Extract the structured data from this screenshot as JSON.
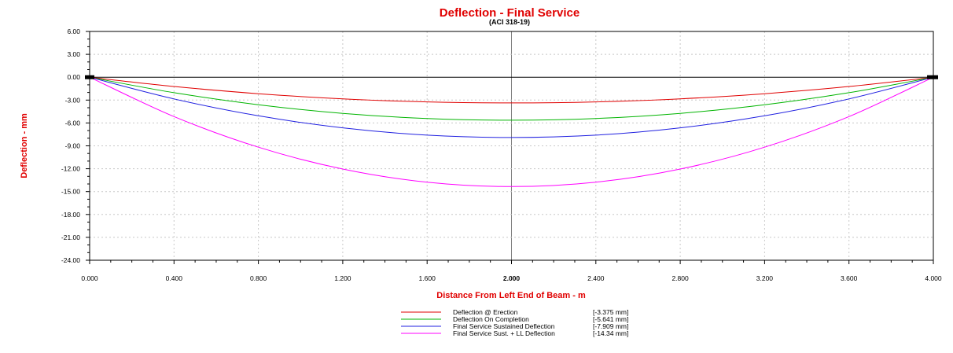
{
  "chart_data": {
    "type": "line",
    "title": "Deflection - Final Service",
    "subtitle": "(ACI 318-19)",
    "xlabel": "Distance From Left End of Beam - m",
    "ylabel": "Deflection - mm",
    "title_color": "#e00000",
    "xlim": [
      0,
      4
    ],
    "ylim": [
      -24,
      6
    ],
    "x_ticks": [
      0,
      0.4,
      0.8,
      1.2,
      1.6,
      2.0,
      2.4,
      2.8,
      3.2,
      3.6,
      4.0
    ],
    "x_tick_labels": [
      "0.000",
      "0.400",
      "0.800",
      "1.200",
      "1.600",
      "2.000",
      "2.400",
      "2.800",
      "3.200",
      "3.600",
      "4.000"
    ],
    "y_ticks": [
      6,
      3,
      0,
      -3,
      -6,
      -9,
      -12,
      -15,
      -18,
      -21,
      -24
    ],
    "y_tick_labels": [
      "6.00",
      "3.00",
      "0.00",
      "-3.00",
      "-6.00",
      "-9.00",
      "-12.00",
      "-15.00",
      "-18.00",
      "-21.00",
      "-24.00"
    ],
    "highlight_x": 2.0,
    "grid": true,
    "legend_position": "bottom-center",
    "series": [
      {
        "name": "Deflection @ Erection",
        "value_label": "[-3.375  mm]",
        "color": "#e00000",
        "x": [
          0,
          0.4,
          0.8,
          1.2,
          1.6,
          2.0,
          2.4,
          2.8,
          3.2,
          3.6,
          4.0
        ],
        "values": [
          0,
          -1.215,
          -2.16,
          -2.835,
          -3.24,
          -3.375,
          -3.24,
          -2.835,
          -2.16,
          -1.215,
          0
        ]
      },
      {
        "name": "Deflection On Completion",
        "value_label": "[-5.641  mm]",
        "color": "#00b400",
        "x": [
          0,
          0.4,
          0.8,
          1.2,
          1.6,
          2.0,
          2.4,
          2.8,
          3.2,
          3.6,
          4.0
        ],
        "values": [
          0,
          -2.031,
          -3.61,
          -4.738,
          -5.415,
          -5.641,
          -5.415,
          -4.738,
          -3.61,
          -2.031,
          0
        ]
      },
      {
        "name": "Final Service Sustained Deflection",
        "value_label": "[-7.909  mm]",
        "color": "#2020e0",
        "x": [
          0,
          0.4,
          0.8,
          1.2,
          1.6,
          2.0,
          2.4,
          2.8,
          3.2,
          3.6,
          4.0
        ],
        "values": [
          0,
          -2.847,
          -5.062,
          -6.644,
          -7.593,
          -7.909,
          -7.593,
          -6.644,
          -5.062,
          -2.847,
          0
        ]
      },
      {
        "name": "Final Service Sust. + LL Deflection",
        "value_label": "[-14.34  mm]",
        "color": "#ff00ff",
        "x": [
          0,
          0.4,
          0.8,
          1.2,
          1.6,
          2.0,
          2.4,
          2.8,
          3.2,
          3.6,
          4.0
        ],
        "values": [
          0,
          -5.162,
          -9.178,
          -12.046,
          -13.766,
          -14.34,
          -13.766,
          -12.046,
          -9.178,
          -5.162,
          0
        ]
      }
    ]
  }
}
